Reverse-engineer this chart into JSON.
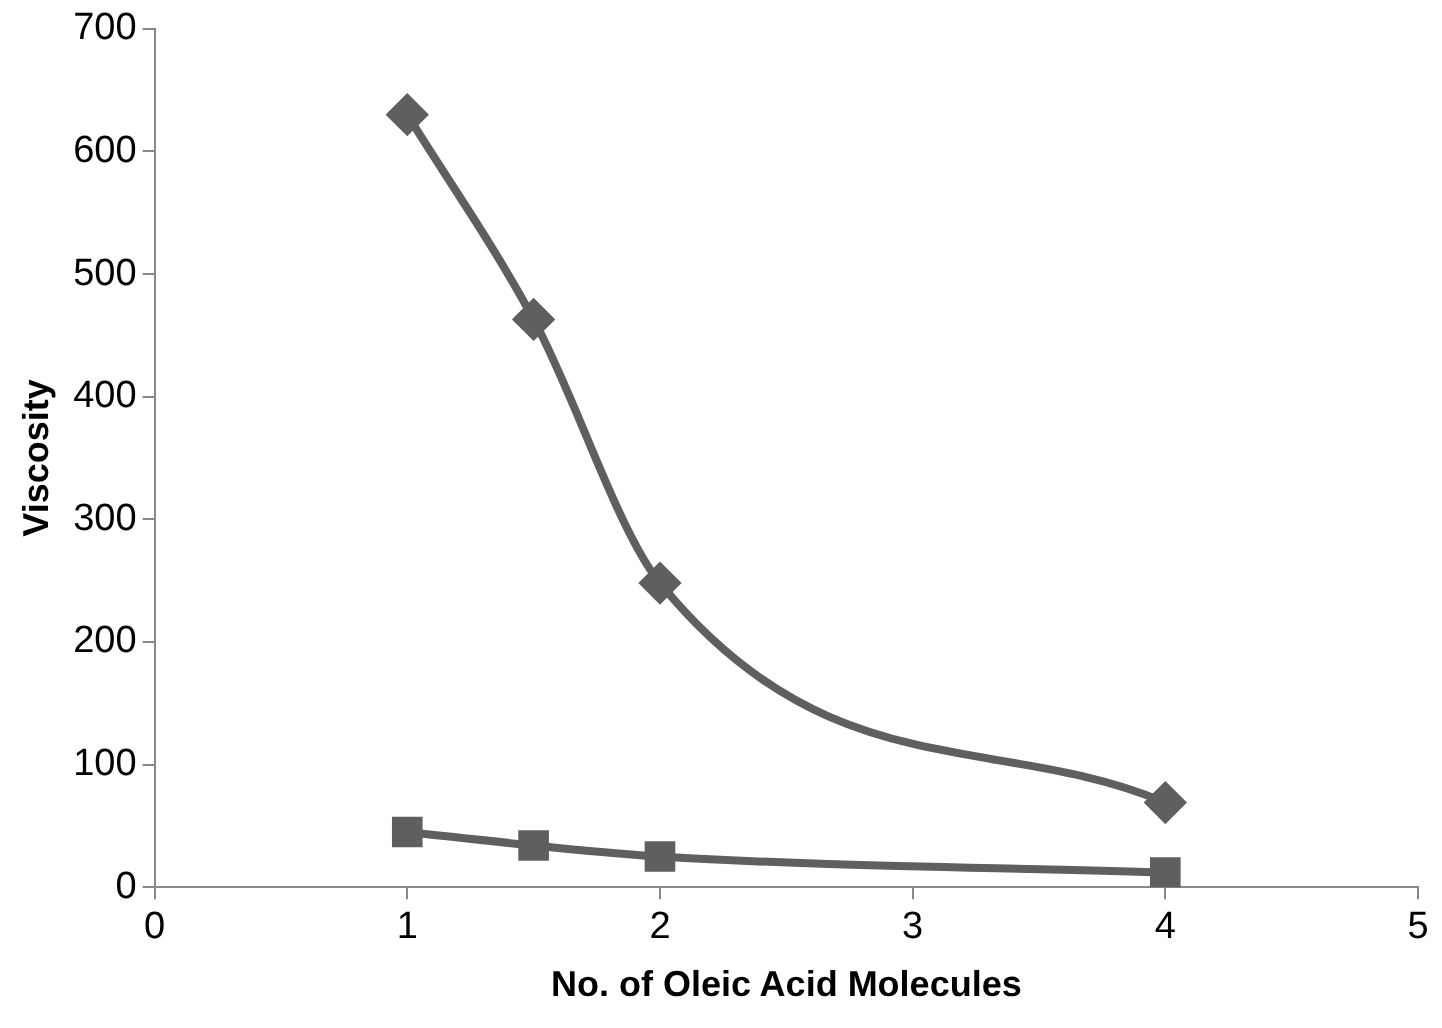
{
  "chart_data": {
    "type": "line",
    "xlabel": "No. of Oleic Acid Molecules",
    "ylabel": "Viscosity",
    "x": [
      1,
      1.5,
      2,
      4
    ],
    "series": [
      {
        "color": "#5f5f5f",
        "marker": "diamond",
        "values": [
          630,
          463,
          248,
          69
        ]
      },
      {
        "color": "#5f5f5f",
        "marker": "square",
        "values": [
          45,
          34,
          25,
          12
        ]
      }
    ],
    "xlim": [
      0,
      5
    ],
    "xticks": [
      0,
      1,
      2,
      3,
      4,
      5
    ],
    "ylim": [
      0,
      700
    ],
    "yticks": [
      0,
      100,
      200,
      300,
      400,
      500,
      600,
      700
    ],
    "grid": false,
    "legend": false
  }
}
